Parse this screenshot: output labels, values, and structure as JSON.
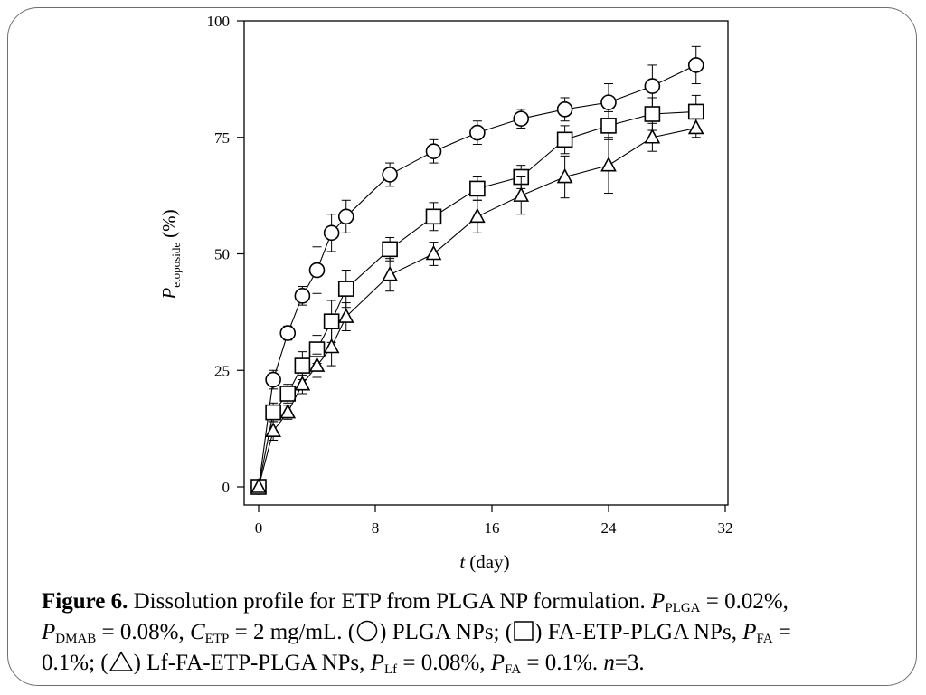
{
  "chart_data": {
    "type": "line",
    "xlabel_var": "t",
    "xlabel_unit": "(day)",
    "ylabel_var": "P",
    "ylabel_sub": "etoposide",
    "ylabel_unit": "(%)",
    "xlim": [
      0,
      32
    ],
    "ylim": [
      0,
      100
    ],
    "xticks": [
      0,
      8,
      16,
      24,
      32
    ],
    "yticks": [
      0,
      25,
      50,
      75,
      100
    ],
    "xtick_labels": [
      "0",
      "8",
      "16",
      "24",
      "32"
    ],
    "ytick_labels": [
      "0",
      "25",
      "50",
      "75",
      "100"
    ],
    "series": [
      {
        "name": "PLGA NPs",
        "marker": "circle",
        "x": [
          0,
          1,
          2,
          3,
          4,
          5,
          6,
          9,
          12,
          15,
          18,
          21,
          24,
          27,
          30
        ],
        "y": [
          0,
          23,
          33,
          41,
          46.5,
          54.5,
          58,
          67,
          72,
          76,
          79,
          81,
          82.5,
          86,
          90.5
        ],
        "err": [
          0,
          2,
          1.5,
          2,
          5,
          4,
          3.5,
          2.5,
          2.5,
          2.5,
          2,
          2.5,
          4,
          4.5,
          4
        ]
      },
      {
        "name": "FA-ETP-PLGA NPs",
        "marker": "square",
        "x": [
          0,
          1,
          2,
          3,
          4,
          5,
          6,
          9,
          12,
          15,
          18,
          21,
          24,
          27,
          30
        ],
        "y": [
          0,
          16,
          20,
          26,
          29.5,
          35.5,
          42.5,
          51,
          58,
          64,
          66.5,
          74.5,
          77.5,
          80,
          80.5
        ],
        "err": [
          0,
          2,
          2,
          3,
          3,
          4.5,
          4,
          2.5,
          3,
          2.5,
          2.5,
          3,
          3,
          3.5,
          3.5
        ]
      },
      {
        "name": "Lf-FA-ETP-PLGA NPs",
        "marker": "triangle",
        "x": [
          0,
          1,
          2,
          3,
          4,
          5,
          6,
          9,
          12,
          15,
          18,
          21,
          24,
          27,
          30
        ],
        "y": [
          0,
          12,
          16,
          22,
          26,
          30,
          36.5,
          45.5,
          50,
          58,
          62.5,
          66.5,
          69,
          75,
          77
        ],
        "err": [
          0,
          2,
          1.5,
          2,
          2.5,
          4,
          3,
          3.5,
          2.5,
          3.5,
          4,
          4.5,
          6,
          3,
          2
        ]
      }
    ]
  },
  "caption": {
    "figure_label": "Figure 6.",
    "text1": " Dissolution profile for ETP from PLGA NP formulation. ",
    "p_var": "P",
    "plga_sub": "PLGA",
    "plga_val": " = 0.02%,",
    "dmab_sub": "DMAB",
    "dmab_val": " = 0.08%, ",
    "c_var": "C",
    "etp_sub": "ETP",
    "etp_val": " = 2 mg/mL. (",
    "leg1": ") PLGA NPs; (",
    "leg2": ") FA-ETP-PLGA NPs, ",
    "fa_sub": "FA",
    "fa_val": " =",
    "fa_val2": "0.1%; (",
    "leg3": ") Lf-FA-ETP-PLGA NPs, ",
    "lf_sub": "Lf",
    "lf_val": " = 0.08%, ",
    "fa2_sub": "FA",
    "fa2_val": " = 0.1%. ",
    "n_var": "n",
    "n_val": "=3."
  }
}
